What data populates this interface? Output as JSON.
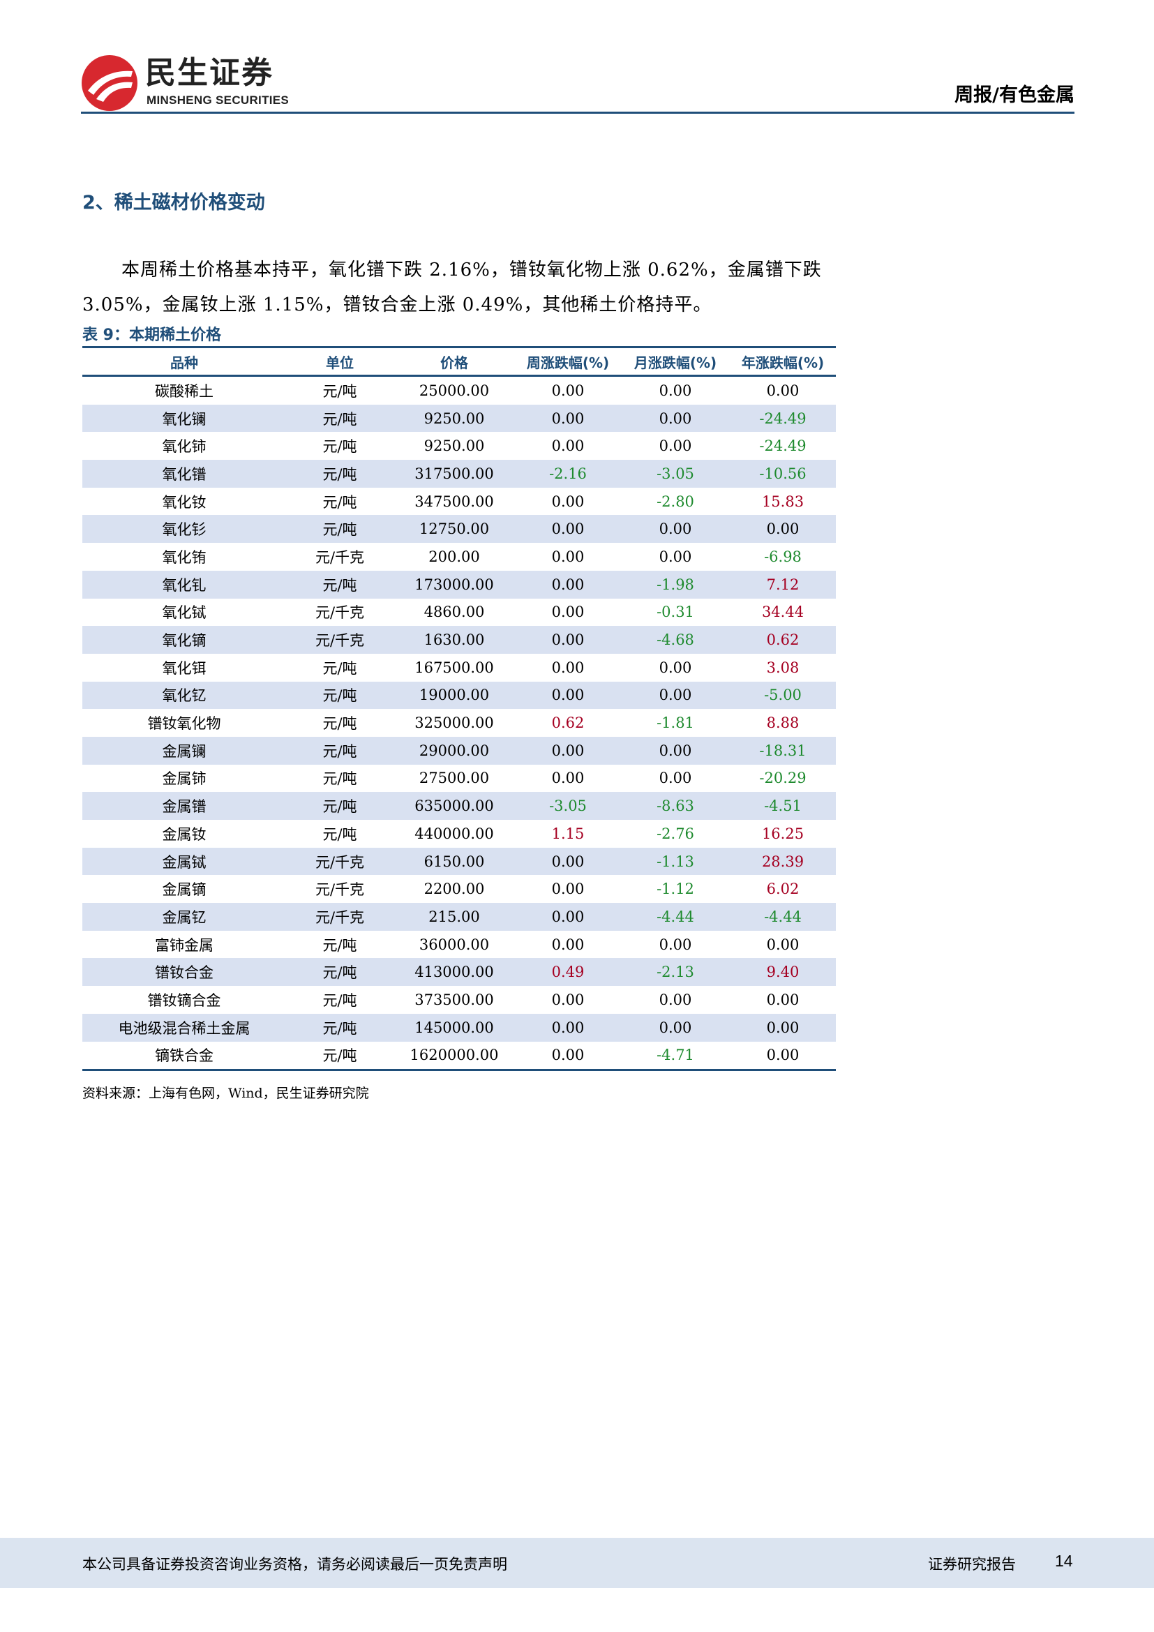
{
  "header": {
    "brand_cn": "民生证券",
    "brand_en": "MINSHENG SECURITIES",
    "report_type": "周报/有色金属",
    "colors": {
      "logo_red": "#d7282f",
      "rule": "#1f4e79"
    }
  },
  "section": {
    "title": "2、稀土磁材价格变动",
    "body": "本周稀土价格基本持平，氧化镨下跌 2.16%，镨钕氧化物上涨 0.62%，金属镨下跌 3.05%，金属钕上涨 1.15%，镨钕合金上涨 0.49%，其他稀土价格持平。"
  },
  "table": {
    "caption": "表 9：本期稀土价格",
    "headers": [
      "品种",
      "单位",
      "价格",
      "周涨跌幅(%)",
      "月涨跌幅(%)",
      "年涨跌幅(%)"
    ],
    "rows": [
      [
        "碳酸稀土",
        "元/吨",
        "25000.00",
        "0.00",
        "0.00",
        "0.00"
      ],
      [
        "氧化镧",
        "元/吨",
        "9250.00",
        "0.00",
        "0.00",
        "-24.49"
      ],
      [
        "氧化铈",
        "元/吨",
        "9250.00",
        "0.00",
        "0.00",
        "-24.49"
      ],
      [
        "氧化镨",
        "元/吨",
        "317500.00",
        "-2.16",
        "-3.05",
        "-10.56"
      ],
      [
        "氧化钕",
        "元/吨",
        "347500.00",
        "0.00",
        "-2.80",
        "15.83"
      ],
      [
        "氧化钐",
        "元/吨",
        "12750.00",
        "0.00",
        "0.00",
        "0.00"
      ],
      [
        "氧化铕",
        "元/千克",
        "200.00",
        "0.00",
        "0.00",
        "-6.98"
      ],
      [
        "氧化钆",
        "元/吨",
        "173000.00",
        "0.00",
        "-1.98",
        "7.12"
      ],
      [
        "氧化铽",
        "元/千克",
        "4860.00",
        "0.00",
        "-0.31",
        "34.44"
      ],
      [
        "氧化镝",
        "元/千克",
        "1630.00",
        "0.00",
        "-4.68",
        "0.62"
      ],
      [
        "氧化铒",
        "元/吨",
        "167500.00",
        "0.00",
        "0.00",
        "3.08"
      ],
      [
        "氧化钇",
        "元/吨",
        "19000.00",
        "0.00",
        "0.00",
        "-5.00"
      ],
      [
        "镨钕氧化物",
        "元/吨",
        "325000.00",
        "0.62",
        "-1.81",
        "8.88"
      ],
      [
        "金属镧",
        "元/吨",
        "29000.00",
        "0.00",
        "0.00",
        "-18.31"
      ],
      [
        "金属铈",
        "元/吨",
        "27500.00",
        "0.00",
        "0.00",
        "-20.29"
      ],
      [
        "金属镨",
        "元/吨",
        "635000.00",
        "-3.05",
        "-8.63",
        "-4.51"
      ],
      [
        "金属钕",
        "元/吨",
        "440000.00",
        "1.15",
        "-2.76",
        "16.25"
      ],
      [
        "金属铽",
        "元/千克",
        "6150.00",
        "0.00",
        "-1.13",
        "28.39"
      ],
      [
        "金属镝",
        "元/千克",
        "2200.00",
        "0.00",
        "-1.12",
        "6.02"
      ],
      [
        "金属钇",
        "元/千克",
        "215.00",
        "0.00",
        "-4.44",
        "-4.44"
      ],
      [
        "富铈金属",
        "元/吨",
        "36000.00",
        "0.00",
        "0.00",
        "0.00"
      ],
      [
        "镨钕合金",
        "元/吨",
        "413000.00",
        "0.49",
        "-2.13",
        "9.40"
      ],
      [
        "镨钕镝合金",
        "元/吨",
        "373500.00",
        "0.00",
        "0.00",
        "0.00"
      ],
      [
        "电池级混合稀土金属",
        "元/吨",
        "145000.00",
        "0.00",
        "0.00",
        "0.00"
      ],
      [
        "镝铁合金",
        "元/吨",
        "1620000.00",
        "0.00",
        "-4.71",
        "0.00"
      ]
    ],
    "colors": {
      "up": "#a50021",
      "down": "#1e8a2e",
      "stripe": "#d9e1f1"
    },
    "source": "资料来源：上海有色网，Wind，民生证券研究院"
  },
  "footer": {
    "disclaimer": "本公司具备证券投资咨询业务资格，请务必阅读最后一页免责声明",
    "label": "证券研究报告",
    "page": "14"
  }
}
